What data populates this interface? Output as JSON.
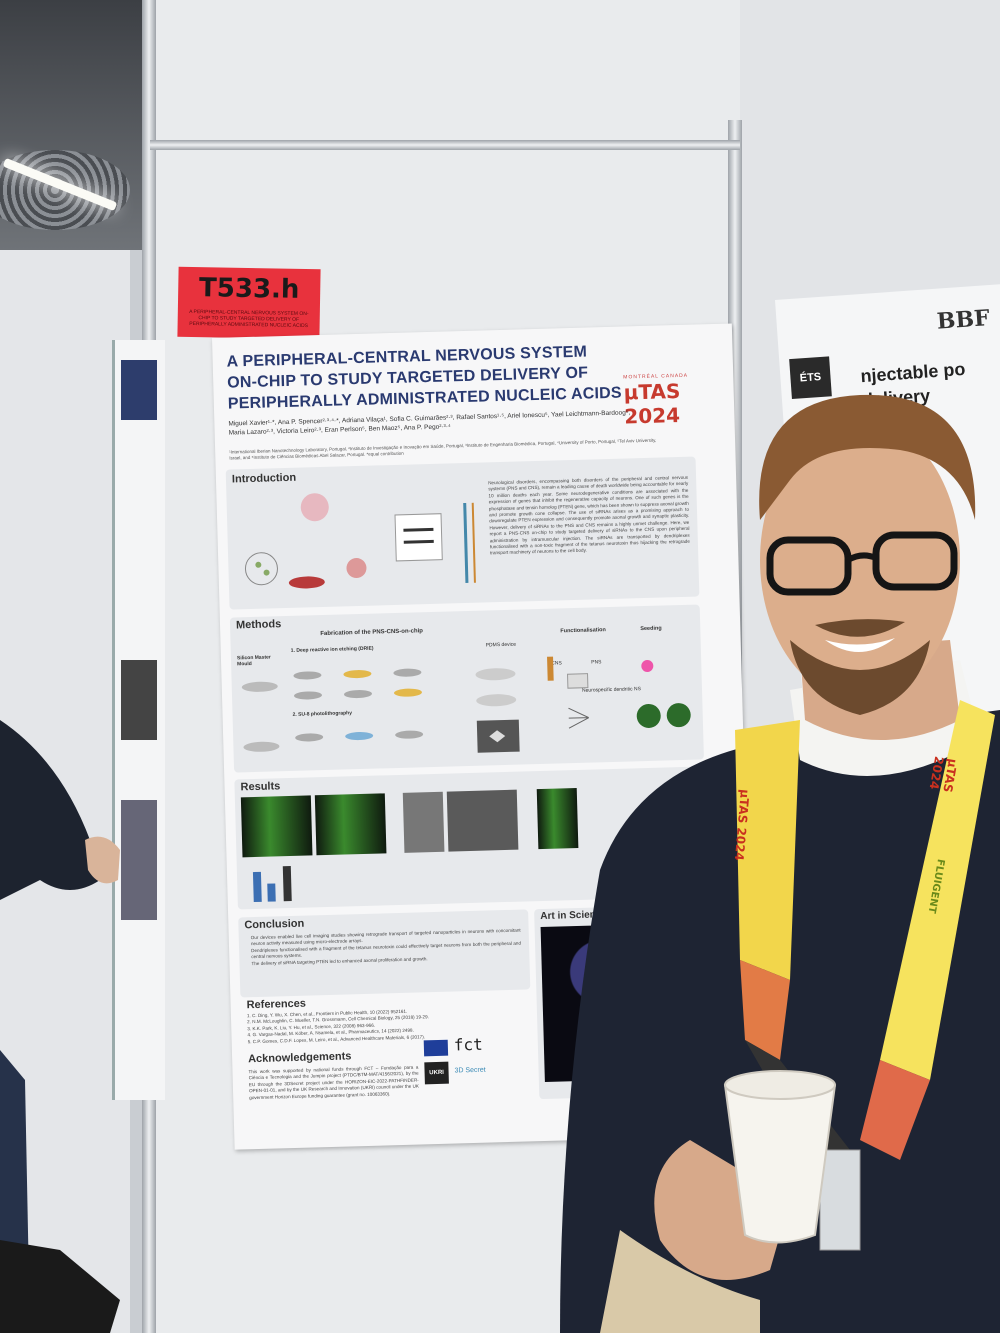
{
  "booth_tag": {
    "number": "T533.h",
    "subtitle": "A PERIPHERAL-CENTRAL NERVOUS SYSTEM ON-CHIP TO STUDY TARGETED DELIVERY OF PERIPHERALLY ADMINISTRATED NUCLEIC ACIDS"
  },
  "poster": {
    "title_lines": [
      "A PERIPHERAL-CENTRAL NERVOUS SYSTEM",
      "ON-CHIP TO STUDY TARGETED DELIVERY OF",
      "PERIPHERALLY ADMINISTRATED NUCLEIC ACIDS"
    ],
    "conference_logo": "µTAS 2024",
    "conference_city": "MONTRÉAL CANADA",
    "authors": "Miguel Xavier¹·*, Ana P. Spencer²·³·⁴·*, Adriana Vilaça¹, Sofia C. Guimarães²·³, Rafael Santos¹·⁵, Ariel Ionescu⁵, Yael Leichtmann-Bardoog⁵, Maria Lazaro²·³, Victoria Leiro²·³, Eran Perlson⁵, Ben Maoz⁵, Ana P. Pego²·³·⁴",
    "affiliations": "¹International Iberian Nanotechnology Laboratory, Portugal, ²Instituto de Investigação e Inovação em Saúde, Portugal, ³Instituto de Engenharia Biomédica, Portugal, ⁴University of Porto, Portugal, ⁵Tel Aviv University, Israel, and ⁶Instituto de Ciências Biomédicas Abel Salazar, Portugal. *equal contribution",
    "sections": {
      "introduction": "Introduction",
      "methods": "Methods",
      "results": "Results",
      "conclusion": "Conclusion",
      "references": "References",
      "acknowledgements": "Acknowledgements",
      "art": "Art in Science Co"
    },
    "intro_text": "Neurological disorders, encompassing both disorders of the peripheral and central nervous systems (PNS and CNS), remain a leading cause of death worldwide being accountable for nearly 10 million deaths each year. Some neurodegenerative conditions are associated with the expression of genes that inhibit the regenerative capacity of neurons. One of such genes is the phosphatase and tensin homolog (PTEN) gene, which has been shown to suppress axonal growth and promote growth cone collapse. The use of siRNAs arises as a promising approach to downregulate PTEN expression and consequently promote axonal growth and synaptic plasticity. However, delivery of siRNAs to the PNS and CNS remains a highly unmet challenge. Here, we report a PNS-CNS on-chip to study targeted delivery of siRNAs to the CNS upon peripheral administration by intramuscular injection. The siRNAs are transported by dendriplexes functionalised with a non-toxic fragment of the tetanus neurotoxin thus hijacking the retrograde transport machinery of neurons to the cell body.",
    "methods": {
      "fabrication_title": "Fabrication of the PNS-CNS-on-chip",
      "silicon_label": "Silicon Master Mould",
      "step1": "1. Deep reactive ion etching (DRIE)",
      "step2": "2. SU-8 photolithography",
      "pdms": "PDMS device",
      "functionalisation": "Functionalisation",
      "seeding": "Seeding",
      "cns": "CNS",
      "pns": "PNS",
      "dendritic": "Neurospecific dendritic NS"
    },
    "conclusion_items": [
      "Our devices enabled live cell imaging studies showing retrograde transport of targeted nanoparticles in neurons with concomitant neuron activity measured using micro-electrode arrays.",
      "Dendriplexes functionalised with a fragment of the tetanus neurotoxin could effectively target neurons from both the peripheral and central nervous systems.",
      "The delivery of siRNA targeting PTEN led to enhanced axonal proliferation and growth."
    ],
    "references": [
      "1. C. Ding, Y. Wu, X. Chen, et al., Frontiers in Public Health, 10 (2022) 952161.",
      "2. N.M. McLoughlin, C. Mueller, T.N. Grossmann, Cell Chemical Biology, 25 (2018) 19-29.",
      "3. K.K. Park, K. Liu, Y. Hu, et al., Science, 322 (2008) 963-966.",
      "4. G. Vargas-Nadal, M. Köber, A. Nsamela, et al., Pharmaceutics, 14 (2022) 2498.",
      "5. C.P. Gomes, C.D.F. Lopes, M. Leiro, et al., Advanced Healthcare Materials, 6 (2017)."
    ],
    "acknowledgements_text": "This work was supported by national funds through FCT – Fundação para a Ciência e Tecnologia and the Jumpin project (PTDC/BTM-MAT/4156/2021), by the EU through the 3DSecret project under the HORIZON-EIC-2022-PATHFINDER-OPEN-01-01, and by the UK Research and Innovation (UKRI) council under the UK government Horizon Europe funding guarantee (grant no. 10063360).",
    "funder_logos": [
      "fct",
      "UKRI",
      "3D Secret"
    ]
  },
  "right_poster": {
    "lab": "BBF",
    "heading": "njectable po delivery",
    "ets": "ÉTS"
  },
  "lanyard": {
    "brand": "µTAS 2024",
    "sponsor": "FLUIGENT"
  },
  "colors": {
    "tag_red": "#e8323d",
    "poster_title_blue": "#2a3a70",
    "sweater_navy": "#1e2433",
    "lanyard_yellow": "#f2d64b"
  }
}
